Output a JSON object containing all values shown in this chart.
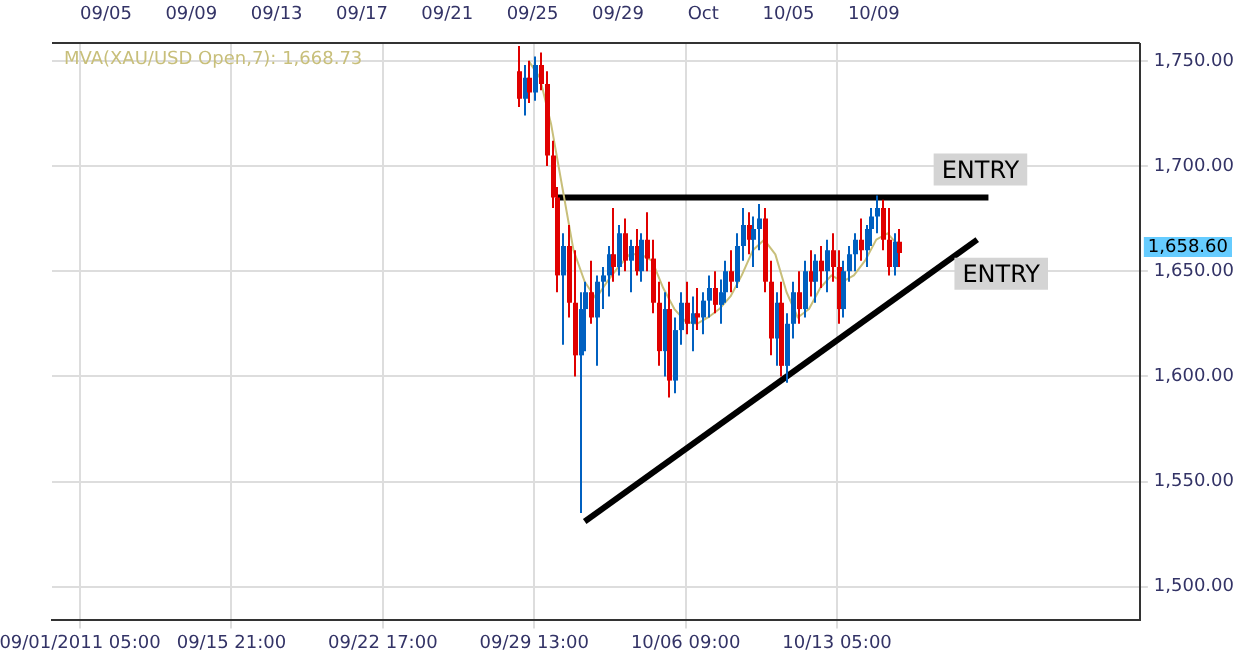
{
  "chart_data": {
    "type": "candlestick",
    "categories": [
      null,
      null,
      null,
      null,
      null,
      "09/01/2011 05:00",
      null,
      null,
      null,
      null,
      null,
      null,
      null,
      null,
      null,
      null,
      null,
      null,
      null,
      null,
      null,
      null,
      null,
      null,
      null,
      null,
      null,
      null,
      null,
      null,
      null,
      null,
      "09/15 21:00",
      null,
      null,
      null,
      null,
      null,
      null,
      null,
      null,
      null,
      null,
      null,
      null,
      null,
      null,
      null,
      null,
      null,
      null,
      null,
      null,
      null,
      null,
      null,
      null,
      null,
      null,
      "09/22 17:00",
      null,
      null,
      null,
      null,
      null,
      null,
      null,
      null,
      null,
      null,
      null,
      null,
      null,
      null,
      null,
      null,
      null,
      null,
      null,
      null,
      null,
      null,
      null,
      null,
      null,
      null,
      "09/29 13:00",
      null,
      null,
      null,
      null,
      null,
      null,
      null,
      null,
      null,
      null,
      null,
      null,
      null,
      null,
      null,
      null,
      null,
      null,
      null,
      null,
      null,
      null,
      null,
      null,
      null,
      null,
      "10/06 09:00",
      null,
      null,
      null,
      null,
      null,
      null,
      null,
      null,
      null,
      null,
      null,
      null,
      null,
      null,
      null,
      null,
      null,
      null,
      null,
      null,
      null,
      null,
      null,
      null,
      null,
      null,
      "10/13 05:00",
      null,
      null,
      null,
      null,
      null,
      null,
      null,
      null,
      null,
      null,
      null,
      null,
      null,
      null,
      null,
      null,
      null,
      null,
      null,
      null,
      null,
      null,
      null,
      null,
      null,
      null,
      null,
      null,
      null,
      null,
      null,
      null,
      null,
      null,
      null,
      null,
      null,
      null,
      null,
      null,
      null,
      null,
      null,
      null,
      null,
      null,
      null,
      null,
      null,
      null,
      null,
      null,
      null,
      null
    ],
    "ohlc": [
      null,
      null,
      null,
      null,
      null,
      null,
      null,
      null,
      null,
      null,
      null,
      null,
      null,
      null,
      null,
      null,
      null,
      null,
      null,
      null,
      null,
      null,
      null,
      null,
      null,
      null,
      null,
      null,
      null,
      null,
      null,
      null,
      null,
      null,
      null,
      null,
      null,
      null,
      null,
      null,
      null,
      null,
      null,
      null,
      null,
      null,
      null,
      null,
      null,
      null,
      null,
      null,
      null,
      null,
      null,
      null,
      null,
      null,
      null,
      null,
      null,
      null,
      null,
      null,
      null,
      null,
      null,
      null,
      null,
      null,
      null,
      null,
      null,
      null,
      null,
      null,
      null,
      null,
      null,
      null,
      null,
      null,
      null,
      [
        1745,
        1757,
        1728,
        1732
      ],
      [
        1732,
        1748,
        1724,
        1742
      ],
      [
        1742,
        1750,
        1730,
        1735
      ],
      [
        1735,
        1752,
        1731,
        1748
      ],
      [
        1748,
        1754,
        1736,
        1739
      ],
      [
        1739,
        1745,
        1700,
        1705
      ],
      [
        1705,
        1712,
        1680,
        1685
      ],
      [
        1685,
        1690,
        1640,
        1648
      ],
      [
        1648,
        1668,
        1615,
        1662
      ],
      [
        1662,
        1672,
        1628,
        1635
      ],
      [
        1635,
        1660,
        1600,
        1610
      ],
      [
        1610,
        1640,
        1535,
        1632
      ],
      [
        1632,
        1645,
        1612,
        1640
      ],
      [
        1640,
        1655,
        1625,
        1628
      ],
      [
        1628,
        1648,
        1605,
        1645
      ],
      [
        1645,
        1652,
        1632,
        1648
      ],
      [
        1648,
        1662,
        1638,
        1658
      ],
      [
        1658,
        1680,
        1645,
        1652
      ],
      [
        1652,
        1672,
        1648,
        1668
      ],
      [
        1668,
        1675,
        1650,
        1655
      ],
      [
        1655,
        1665,
        1640,
        1662
      ],
      [
        1662,
        1670,
        1648,
        1650
      ],
      [
        1650,
        1668,
        1645,
        1665
      ],
      [
        1665,
        1678,
        1650,
        1656
      ],
      [
        1656,
        1665,
        1630,
        1635
      ],
      [
        1635,
        1645,
        1605,
        1612
      ],
      [
        1612,
        1640,
        1600,
        1632
      ],
      [
        1632,
        1645,
        1590,
        1598
      ],
      [
        1598,
        1628,
        1592,
        1622
      ],
      [
        1622,
        1640,
        1615,
        1635
      ],
      [
        1635,
        1645,
        1620,
        1625
      ],
      [
        1625,
        1638,
        1612,
        1630
      ],
      [
        1630,
        1642,
        1622,
        1628
      ],
      [
        1628,
        1640,
        1620,
        1636
      ],
      [
        1636,
        1648,
        1628,
        1642
      ],
      [
        1642,
        1650,
        1630,
        1634
      ],
      [
        1634,
        1646,
        1625,
        1640
      ],
      [
        1640,
        1655,
        1635,
        1650
      ],
      [
        1650,
        1660,
        1640,
        1645
      ],
      [
        1645,
        1668,
        1642,
        1662
      ],
      [
        1662,
        1680,
        1655,
        1672
      ],
      [
        1672,
        1678,
        1658,
        1665
      ],
      [
        1665,
        1676,
        1652,
        1670
      ],
      [
        1670,
        1682,
        1660,
        1675
      ],
      [
        1675,
        1680,
        1640,
        1645
      ],
      [
        1645,
        1655,
        1610,
        1618
      ],
      [
        1618,
        1640,
        1605,
        1635
      ],
      [
        1635,
        1645,
        1600,
        1605
      ],
      [
        1605,
        1630,
        1597,
        1625
      ],
      [
        1625,
        1645,
        1618,
        1640
      ],
      [
        1640,
        1650,
        1625,
        1632
      ],
      [
        1632,
        1655,
        1628,
        1650
      ],
      [
        1650,
        1660,
        1638,
        1645
      ],
      [
        1645,
        1658,
        1635,
        1655
      ],
      [
        1655,
        1662,
        1642,
        1650
      ],
      [
        1650,
        1665,
        1640,
        1660
      ],
      [
        1660,
        1668,
        1645,
        1652
      ],
      [
        1652,
        1660,
        1625,
        1632
      ],
      [
        1632,
        1655,
        1628,
        1650
      ],
      [
        1650,
        1662,
        1645,
        1658
      ],
      [
        1658,
        1668,
        1650,
        1665
      ],
      [
        1665,
        1675,
        1655,
        1660
      ],
      [
        1660,
        1672,
        1652,
        1670
      ],
      [
        1670,
        1680,
        1662,
        1676
      ],
      [
        1676,
        1686,
        1668,
        1680
      ],
      [
        1680,
        1684,
        1660,
        1665
      ],
      [
        1665,
        1680,
        1648,
        1652
      ],
      [
        1652,
        1668,
        1648,
        1664
      ],
      [
        1664,
        1670,
        1652,
        1658.6
      ],
      null,
      null,
      null,
      null,
      null,
      null,
      null,
      null,
      null,
      null,
      null,
      null,
      null,
      null,
      null,
      null,
      null,
      null,
      null,
      null,
      null,
      null,
      null,
      null,
      null,
      null,
      null,
      null,
      null,
      null,
      null,
      null,
      null,
      null,
      null,
      null,
      null,
      null,
      null,
      null,
      null,
      null,
      null
    ],
    "colors": [
      null,
      null,
      null,
      null,
      null,
      null,
      null,
      null,
      null,
      null,
      null,
      null,
      null,
      null,
      null,
      null,
      null,
      null,
      null,
      null,
      null,
      null,
      null,
      null,
      null,
      null,
      null,
      null,
      null,
      null,
      null,
      null,
      null,
      null,
      null,
      null,
      null,
      null,
      null,
      null,
      null,
      null,
      null,
      null,
      null,
      null,
      null,
      null,
      null,
      null,
      null,
      null,
      null,
      null,
      null,
      null,
      null,
      null,
      null,
      null,
      null,
      null,
      null,
      null,
      null,
      null,
      null,
      null,
      null,
      null,
      null,
      null,
      null,
      null,
      null,
      null,
      null,
      null,
      null,
      null,
      null,
      null,
      null,
      "#e00000",
      "#0060c0",
      "#e00000",
      "#0060c0",
      "#e00000",
      "#e00000",
      "#e00000",
      "#e00000",
      "#0060c0",
      "#e00000",
      "#e00000",
      "#0060c0",
      "#0060c0",
      "#e00000",
      "#0060c0",
      "#0060c0",
      "#0060c0",
      "#e00000",
      "#0060c0",
      "#e00000",
      "#0060c0",
      "#e00000",
      "#0060c0",
      "#e00000",
      "#e00000",
      "#e00000",
      "#0060c0",
      "#e00000",
      "#0060c0",
      "#0060c0",
      "#e00000",
      "#0060c0",
      "#e00000",
      "#0060c0",
      "#0060c0",
      "#e00000",
      "#0060c0",
      "#0060c0",
      "#e00000",
      "#0060c0",
      "#0060c0",
      "#e00000",
      "#0060c0",
      "#0060c0",
      "#e00000",
      "#e00000",
      "#0060c0",
      "#e00000",
      "#0060c0",
      "#0060c0",
      "#e00000",
      "#0060c0",
      "#e00000",
      "#0060c0",
      "#e00000",
      "#0060c0",
      "#e00000",
      "#e00000",
      "#0060c0",
      "#0060c0",
      "#0060c0",
      "#e00000",
      "#0060c0",
      "#0060c0",
      "#0060c0",
      "#e00000",
      "#e00000",
      "#0060c0",
      "#e00000",
      null,
      null,
      null,
      null,
      null,
      null,
      null,
      null,
      null,
      null,
      null,
      null,
      null,
      null,
      null,
      null,
      null,
      null,
      null,
      null,
      null,
      null,
      null,
      null,
      null,
      null,
      null,
      null,
      null,
      null,
      null,
      null,
      null,
      null,
      null,
      null,
      null,
      null,
      null,
      null,
      null,
      null,
      null
    ],
    "series": [
      {
        "name": "MVA(XAU/USD Open,7): 1,668.73",
        "type": "line",
        "color": "#c8bf7a",
        "values": [
          null,
          null,
          null,
          null,
          null,
          null,
          null,
          null,
          null,
          null,
          null,
          null,
          null,
          null,
          null,
          null,
          null,
          null,
          null,
          null,
          null,
          null,
          null,
          null,
          null,
          null,
          null,
          null,
          null,
          null,
          null,
          null,
          null,
          null,
          null,
          null,
          null,
          null,
          null,
          null,
          null,
          null,
          null,
          null,
          null,
          null,
          null,
          null,
          null,
          null,
          null,
          null,
          null,
          null,
          null,
          null,
          null,
          null,
          null,
          null,
          null,
          null,
          null,
          null,
          null,
          null,
          null,
          null,
          null,
          null,
          null,
          null,
          null,
          null,
          null,
          null,
          null,
          null,
          null,
          null,
          null,
          null,
          null,
          null,
          null,
          1750,
          null,
          1742,
          null,
          1720,
          null,
          1690,
          null,
          1660,
          null,
          1645,
          null,
          1637,
          null,
          1645,
          null,
          1652,
          null,
          1658,
          null,
          1658,
          null,
          1655,
          null,
          1642,
          null,
          1632,
          null,
          1626,
          null,
          1625,
          null,
          1628,
          null,
          1632,
          null,
          1638,
          null,
          1648,
          null,
          1660,
          null,
          1665,
          null,
          1658,
          null,
          1640,
          null,
          1628,
          null,
          1632,
          null,
          1642,
          null,
          1648,
          null,
          1645,
          null,
          1648,
          null,
          1655,
          null,
          1665,
          null,
          1668,
          null,
          1662,
          null,
          null,
          null,
          null,
          null,
          null,
          null,
          null,
          null,
          null,
          null,
          null,
          null,
          null,
          null,
          null,
          null,
          null,
          null,
          null,
          null,
          null,
          null,
          null,
          null,
          null,
          null,
          null,
          null,
          null,
          null,
          null,
          null,
          null,
          null,
          null,
          null,
          null,
          null,
          null,
          null,
          null,
          null
        ]
      },
      {
        "type": "line",
        "color": "#000000",
        "values": [
          null,
          null,
          null,
          null,
          null,
          null,
          null,
          null,
          null,
          null,
          null,
          null,
          null,
          null,
          null,
          null,
          null,
          null,
          null,
          null,
          null,
          null,
          null,
          null,
          null,
          null,
          null,
          null,
          null,
          null,
          null,
          null,
          null,
          null,
          null,
          null,
          null,
          null,
          null,
          null,
          null,
          null,
          null,
          null,
          null,
          null,
          null,
          null,
          null,
          null,
          null,
          null,
          null,
          null,
          null,
          null,
          null,
          null,
          null,
          null,
          null,
          null,
          null,
          null,
          null,
          null,
          null,
          null,
          null,
          null,
          null,
          null,
          null,
          null,
          null,
          null,
          null,
          null,
          null,
          null,
          null,
          null,
          null,
          null,
          null,
          null,
          null,
          null,
          null,
          null,
          1685,
          null,
          null,
          null,
          null,
          null,
          null,
          null,
          null,
          null,
          null,
          null,
          null,
          null,
          null,
          null,
          null,
          null,
          null,
          null,
          null,
          null,
          null,
          null,
          null,
          null,
          null,
          null,
          null,
          null,
          null,
          null,
          null,
          null,
          null,
          null,
          null,
          null,
          null,
          null,
          null,
          null,
          null,
          null,
          null,
          null,
          null,
          null,
          null,
          null,
          null,
          null,
          null,
          null,
          null,
          null,
          null,
          null,
          null,
          null,
          null,
          null,
          null,
          null,
          null,
          null,
          null,
          null,
          null,
          null,
          null,
          null,
          null,
          null,
          null,
          null,
          null,
          1685,
          null,
          null,
          null,
          null,
          null,
          null,
          null,
          null,
          null,
          null,
          null,
          null,
          null,
          null,
          null,
          null,
          null,
          null,
          null,
          null,
          null,
          null,
          null,
          null,
          null,
          null,
          null
        ]
      },
      {
        "type": "line",
        "color": "#000000",
        "values": [
          null,
          null,
          null,
          null,
          null,
          null,
          null,
          null,
          null,
          null,
          null,
          null,
          null,
          null,
          null,
          null,
          null,
          null,
          null,
          null,
          null,
          null,
          null,
          null,
          null,
          null,
          null,
          null,
          null,
          null,
          null,
          null,
          null,
          null,
          null,
          null,
          null,
          null,
          null,
          null,
          null,
          null,
          null,
          null,
          null,
          null,
          null,
          null,
          null,
          null,
          null,
          null,
          null,
          null,
          null,
          null,
          null,
          null,
          null,
          null,
          null,
          null,
          null,
          null,
          null,
          null,
          null,
          null,
          null,
          null,
          null,
          null,
          null,
          null,
          null,
          null,
          null,
          null,
          null,
          null,
          null,
          null,
          null,
          null,
          null,
          null,
          null,
          null,
          null,
          null,
          null,
          null,
          null,
          null,
          null,
          1531,
          null,
          null,
          null,
          null,
          null,
          null,
          null,
          null,
          null,
          null,
          null,
          null,
          null,
          null,
          null,
          null,
          null,
          null,
          null,
          null,
          null,
          null,
          null,
          null,
          null,
          null,
          null,
          null,
          null,
          null,
          null,
          null,
          null,
          null,
          null,
          null,
          null,
          null,
          null,
          null,
          null,
          null,
          null,
          null,
          null,
          null,
          null,
          null,
          null,
          null,
          null,
          null,
          null,
          null,
          null,
          null,
          null,
          null,
          null,
          null,
          null,
          null,
          null,
          null,
          null,
          null,
          null,
          null,
          null,
          1665,
          null,
          null,
          null,
          null,
          null,
          null,
          null,
          null,
          null,
          null,
          null,
          null,
          null,
          null,
          null,
          null,
          null,
          null,
          null,
          null,
          null,
          null,
          null,
          null,
          null,
          null,
          null,
          null,
          null
        ]
      }
    ],
    "ylim": [
      1484,
      1758
    ],
    "yticks": [
      {
        "value": 1500,
        "label": "1,500.00"
      },
      {
        "value": 1550,
        "label": "1,550.00"
      },
      {
        "value": 1600,
        "label": "1,600.00"
      },
      {
        "value": 1650,
        "label": "1,650.00"
      },
      {
        "value": 1700,
        "label": "1,700.00"
      },
      {
        "value": 1750,
        "label": "1,750.00"
      }
    ],
    "annotations": [
      "ENTRY",
      "ENTRY",
      "1,658.60",
      "09/05",
      "09/09",
      "09/13",
      "09/17",
      "09/21",
      "09/25",
      "09/29",
      "Oct",
      "10/05",
      "10/09"
    ],
    "grid": true,
    "legend": "top left"
  }
}
